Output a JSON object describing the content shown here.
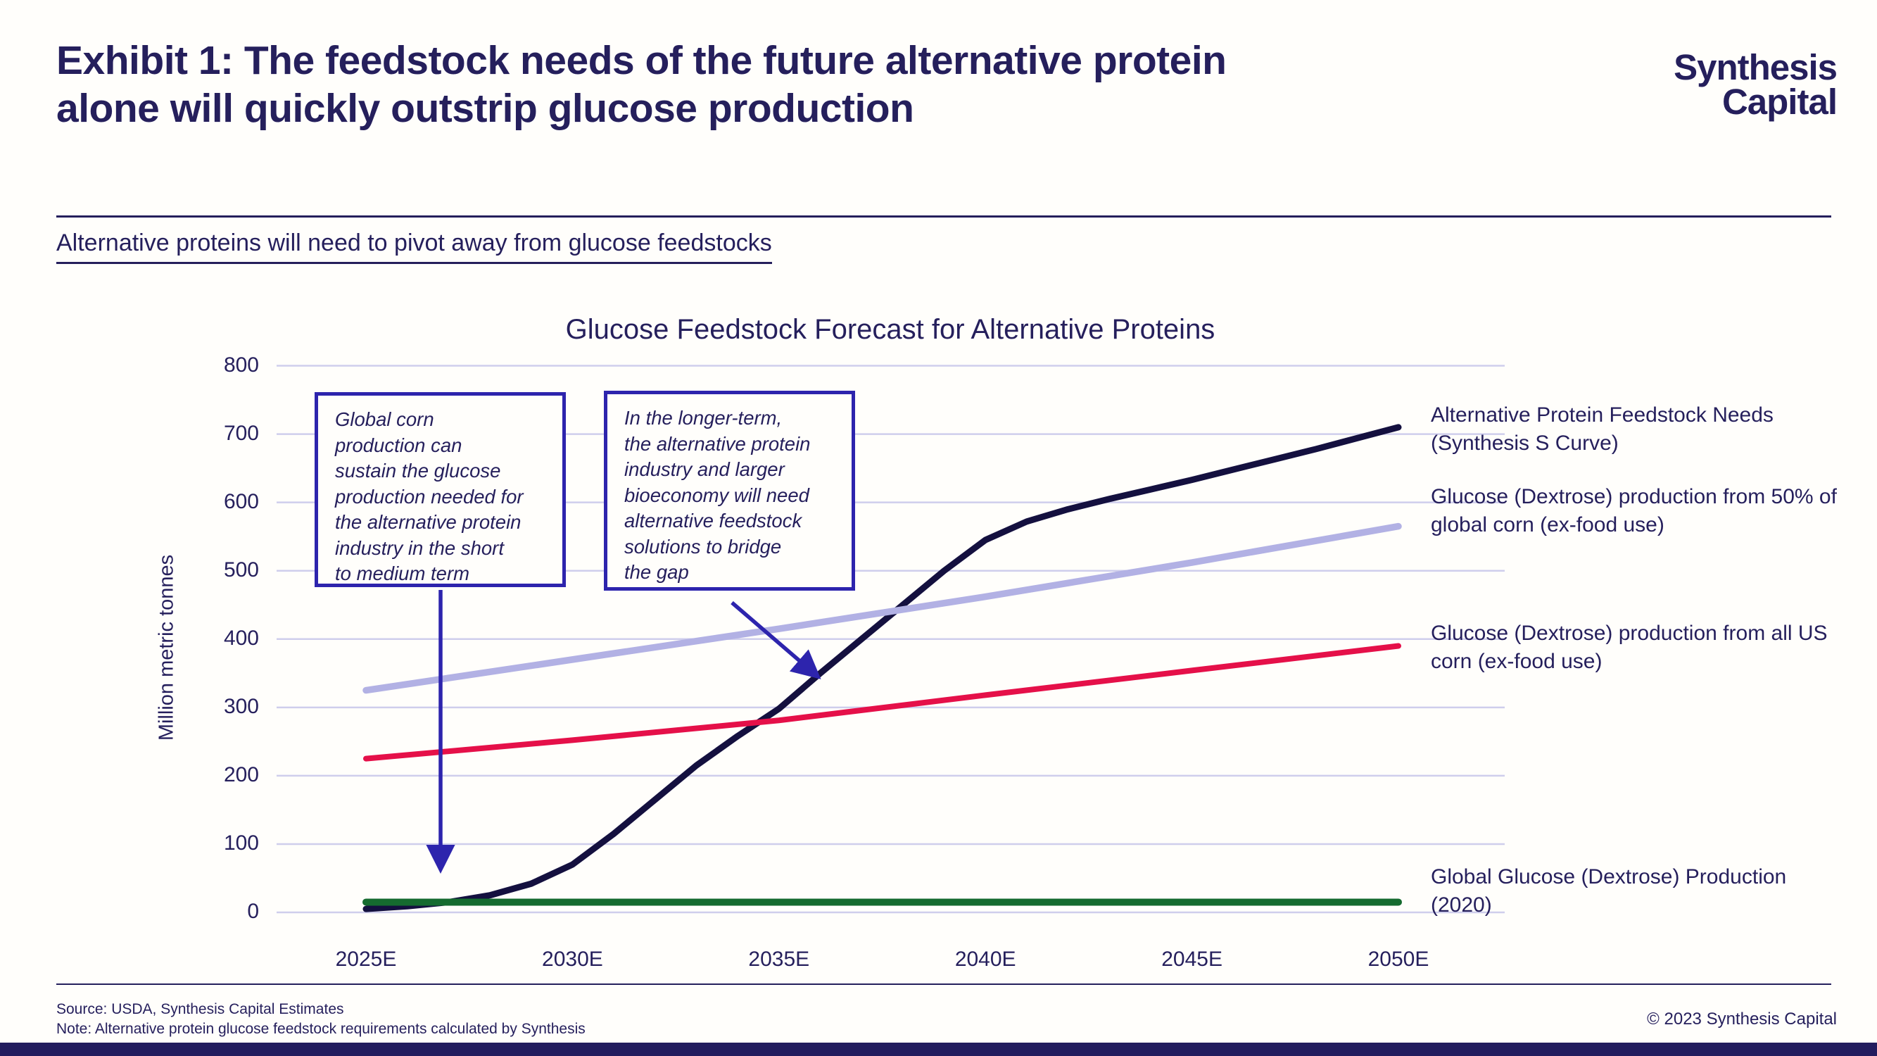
{
  "page": {
    "title": "Exhibit 1: The feedstock needs of the future alternative protein alone will quickly outstrip glucose production",
    "logo_line1": "Synthesis",
    "logo_line2": "Capital",
    "subtitle": "Alternative proteins will need to pivot away from glucose feedstocks",
    "footer_source": "Source: USDA, Synthesis Capital Estimates",
    "footer_note": "Note: Alternative protein glucose feedstock requirements calculated by Synthesis",
    "copyright": "© 2023 Synthesis Capital"
  },
  "annotations": {
    "box1": "Global corn\nproduction can\nsustain the glucose\nproduction needed for\nthe alternative protein\nindustry in the short\nto medium term",
    "box2": "In the longer-term,\nthe alternative protein\nindustry and larger\nbioeconomy will need\nalternative feedstock\nsolutions to bridge\nthe gap"
  },
  "colors": {
    "text_navy": "#251f5c",
    "s_curve": "#14103f",
    "corn50": "#b2b1e4",
    "us_corn": "#e51049",
    "global_glucose": "#156b2f",
    "gridline": "#cfceec",
    "callout_indigo": "#2d24ad",
    "bottom_bar": "#221c5e"
  },
  "chart_data": {
    "type": "line",
    "title": "Glucose Feedstock Forecast for Alternative Proteins",
    "xlabel": "",
    "ylabel": "Million metric tonnes",
    "ylim": [
      0,
      800
    ],
    "y_ticks": [
      0,
      100,
      200,
      300,
      400,
      500,
      600,
      700,
      800
    ],
    "x_ticks": [
      {
        "label": "2025E",
        "year": 2025
      },
      {
        "label": "2030E",
        "year": 2030
      },
      {
        "label": "2035E",
        "year": 2035
      },
      {
        "label": "2040E",
        "year": 2040
      },
      {
        "label": "2045E",
        "year": 2045
      },
      {
        "label": "2050E",
        "year": 2050
      }
    ],
    "grid": "horizontal",
    "legend_position": "right",
    "series": [
      {
        "name": "Alternative Protein Feedstock Needs (Synthesis S Curve)",
        "color": "#14103f",
        "stroke_width": 9,
        "x": [
          2025,
          2026,
          2027,
          2028,
          2029,
          2030,
          2031,
          2032,
          2033,
          2034,
          2035,
          2036,
          2037,
          2038,
          2039,
          2040,
          2041,
          2042,
          2043,
          2044,
          2045,
          2046,
          2047,
          2048,
          2049,
          2050
        ],
        "values": [
          5,
          9,
          15,
          25,
          42,
          70,
          115,
          165,
          215,
          258,
          298,
          350,
          400,
          450,
          500,
          545,
          572,
          590,
          605,
          619,
          633,
          648,
          663,
          678,
          694,
          710
        ]
      },
      {
        "name": "Glucose (Dextrose) production from 50% of global corn (ex-food use)",
        "color": "#b2b1e4",
        "stroke_width": 9.5,
        "x": [
          2025,
          2030,
          2035,
          2040,
          2045,
          2050
        ],
        "values": [
          325,
          370,
          415,
          462,
          512,
          565
        ]
      },
      {
        "name": "Glucose (Dextrose) production from all US corn (ex-food use)",
        "color": "#e51049",
        "stroke_width": 8,
        "x": [
          2025,
          2030,
          2035,
          2040,
          2045,
          2050
        ],
        "values": [
          225,
          252,
          281,
          318,
          354,
          390
        ]
      },
      {
        "name": "Global Glucose (Dextrose) Production (2020)",
        "color": "#156b2f",
        "stroke_width": 10,
        "x": [
          2025,
          2050
        ],
        "values": [
          15,
          15
        ]
      }
    ]
  }
}
